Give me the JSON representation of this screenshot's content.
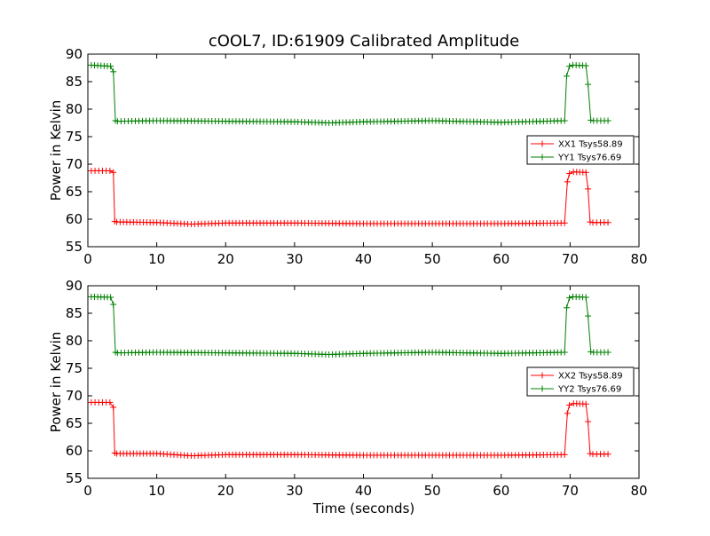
{
  "chart_data": {
    "title": "cOOL7, ID:61909 Calibrated Amplitude",
    "xlabel": "Time (seconds)",
    "colors": {
      "red": "#ff0000",
      "green": "#008000"
    },
    "panels": [
      {
        "type": "line",
        "ylabel": "Power in Kelvin",
        "xlim": [
          0,
          80
        ],
        "ylim": [
          55,
          90
        ],
        "xticks": [
          0,
          10,
          20,
          30,
          40,
          50,
          60,
          70,
          80
        ],
        "yticks": [
          55,
          60,
          65,
          70,
          75,
          80,
          85,
          90
        ],
        "legend_position": "right",
        "series": [
          {
            "name": "XX1 Tsys58.89",
            "color": "#ff0000",
            "marker": "+",
            "x": [
              0.5,
              3.2,
              3.7,
              3.9,
              4.2,
              10,
              15,
              20,
              30,
              40,
              50,
              60,
              69.2,
              69.6,
              69.9,
              70.5,
              72.3,
              72.6,
              72.9,
              73.3,
              75.5
            ],
            "y": [
              68.8,
              68.8,
              68.5,
              59.6,
              59.5,
              59.4,
              59.1,
              59.3,
              59.3,
              59.2,
              59.2,
              59.2,
              59.3,
              66.8,
              68.3,
              68.6,
              68.5,
              65.5,
              59.5,
              59.4,
              59.4
            ]
          },
          {
            "name": "YY1 Tsys76.69",
            "color": "#008000",
            "marker": "+",
            "x": [
              0.5,
              3.3,
              3.7,
              4.0,
              4.3,
              10,
              20,
              30,
              35,
              40,
              50,
              60,
              69.2,
              69.5,
              69.9,
              70.4,
              72.3,
              72.6,
              73.0,
              73.4,
              75.5
            ],
            "y": [
              88.0,
              87.8,
              86.8,
              77.9,
              77.8,
              77.9,
              77.8,
              77.7,
              77.5,
              77.7,
              77.9,
              77.6,
              77.9,
              86.0,
              87.8,
              88.0,
              87.9,
              84.5,
              78.0,
              77.9,
              77.9
            ]
          }
        ]
      },
      {
        "type": "line",
        "ylabel": "Power in Kelvin",
        "xlim": [
          0,
          80
        ],
        "ylim": [
          55,
          90
        ],
        "xticks": [
          0,
          10,
          20,
          30,
          40,
          50,
          60,
          70,
          80
        ],
        "yticks": [
          55,
          60,
          65,
          70,
          75,
          80,
          85,
          90
        ],
        "legend_position": "right",
        "series": [
          {
            "name": "XX2 Tsys58.89",
            "color": "#ff0000",
            "marker": "+",
            "x": [
              0.5,
              3.2,
              3.7,
              3.9,
              4.2,
              10,
              15,
              20,
              30,
              40,
              50,
              60,
              69.2,
              69.6,
              69.9,
              70.5,
              72.3,
              72.6,
              72.9,
              73.3,
              75.5
            ],
            "y": [
              68.8,
              68.8,
              67.9,
              59.6,
              59.5,
              59.5,
              59.1,
              59.3,
              59.3,
              59.2,
              59.2,
              59.2,
              59.3,
              66.8,
              68.3,
              68.6,
              68.5,
              65.3,
              59.5,
              59.4,
              59.4
            ]
          },
          {
            "name": "YY2 Tsys76.69",
            "color": "#008000",
            "marker": "+",
            "x": [
              0.5,
              3.3,
              3.7,
              4.0,
              4.3,
              10,
              20,
              30,
              35,
              40,
              50,
              60,
              69.2,
              69.5,
              69.9,
              70.4,
              72.3,
              72.6,
              73.0,
              73.4,
              75.5
            ],
            "y": [
              88.0,
              87.9,
              86.6,
              77.9,
              77.8,
              77.9,
              77.8,
              77.7,
              77.5,
              77.7,
              77.9,
              77.7,
              77.9,
              86.0,
              87.8,
              88.0,
              87.9,
              84.5,
              78.0,
              77.9,
              77.9
            ]
          }
        ]
      }
    ]
  }
}
